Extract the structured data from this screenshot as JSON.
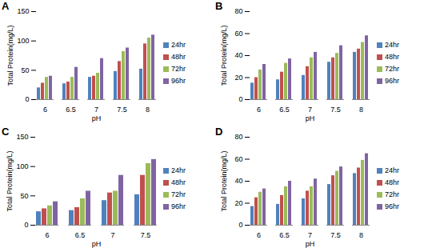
{
  "chart_data": [
    {
      "type": "bar",
      "title": "A",
      "x_label": "pH",
      "y_label": "Total Protein(mg/L)",
      "categories": [
        "6",
        "6.5",
        "7",
        "7.5",
        "8"
      ],
      "series": [
        {
          "name": "24hr",
          "color": "#4f81bd",
          "values": [
            20,
            27,
            38,
            48,
            52
          ]
        },
        {
          "name": "48hr",
          "color": "#c0504d",
          "values": [
            28,
            30,
            40,
            65,
            95
          ]
        },
        {
          "name": "72hr",
          "color": "#9bbb59",
          "values": [
            38,
            38,
            45,
            82,
            105
          ]
        },
        {
          "name": "96hr",
          "color": "#8064a2",
          "values": [
            40,
            55,
            70,
            88,
            110
          ]
        }
      ],
      "ylim": [
        0,
        150
      ],
      "yticks": [
        0,
        50,
        100,
        150
      ],
      "grid": false,
      "legend": "right"
    },
    {
      "type": "bar",
      "title": "B",
      "x_label": "pH",
      "y_label": "Total Protein(mg/L)",
      "categories": [
        "6",
        "6.5",
        "7",
        "7.5",
        "8"
      ],
      "series": [
        {
          "name": "24hr",
          "color": "#4f81bd",
          "values": [
            15,
            18,
            22,
            34,
            43
          ]
        },
        {
          "name": "48hr",
          "color": "#c0504d",
          "values": [
            20,
            25,
            30,
            38,
            46
          ]
        },
        {
          "name": "72hr",
          "color": "#9bbb59",
          "values": [
            27,
            33,
            38,
            42,
            52
          ]
        },
        {
          "name": "96hr",
          "color": "#8064a2",
          "values": [
            32,
            37,
            43,
            49,
            58
          ]
        }
      ],
      "ylim": [
        0,
        80
      ],
      "yticks": [
        0,
        20,
        40,
        60,
        80
      ],
      "grid": false,
      "legend": "right"
    },
    {
      "type": "bar",
      "title": "C",
      "x_label": "pH",
      "y_label": "Total Protein(mg/L)",
      "categories": [
        "6",
        "6.5",
        "7",
        "7.5"
      ],
      "series": [
        {
          "name": "24hr",
          "color": "#4f81bd",
          "values": [
            23,
            25,
            42,
            52
          ]
        },
        {
          "name": "48hr",
          "color": "#c0504d",
          "values": [
            28,
            30,
            55,
            85
          ]
        },
        {
          "name": "72hr",
          "color": "#9bbb59",
          "values": [
            33,
            45,
            58,
            105
          ]
        },
        {
          "name": "96hr",
          "color": "#8064a2",
          "values": [
            40,
            58,
            85,
            112
          ]
        }
      ],
      "ylim": [
        0,
        150
      ],
      "yticks": [
        0,
        50,
        100,
        150
      ],
      "grid": false,
      "legend": "right"
    },
    {
      "type": "bar",
      "title": "D",
      "x_label": "pH",
      "y_label": "Total Protein(mg/L)",
      "categories": [
        "6",
        "6.5",
        "7",
        "7.5",
        "8"
      ],
      "series": [
        {
          "name": "24hr",
          "color": "#4f81bd",
          "values": [
            17,
            19,
            24,
            37,
            47
          ]
        },
        {
          "name": "48hr",
          "color": "#c0504d",
          "values": [
            25,
            27,
            31,
            45,
            52
          ]
        },
        {
          "name": "72hr",
          "color": "#9bbb59",
          "values": [
            30,
            35,
            35,
            49,
            59
          ]
        },
        {
          "name": "96hr",
          "color": "#8064a2",
          "values": [
            33,
            40,
            42,
            53,
            65
          ]
        }
      ],
      "ylim": [
        0,
        80
      ],
      "yticks": [
        0,
        20,
        40,
        60,
        80
      ],
      "grid": false,
      "legend": "right"
    }
  ]
}
